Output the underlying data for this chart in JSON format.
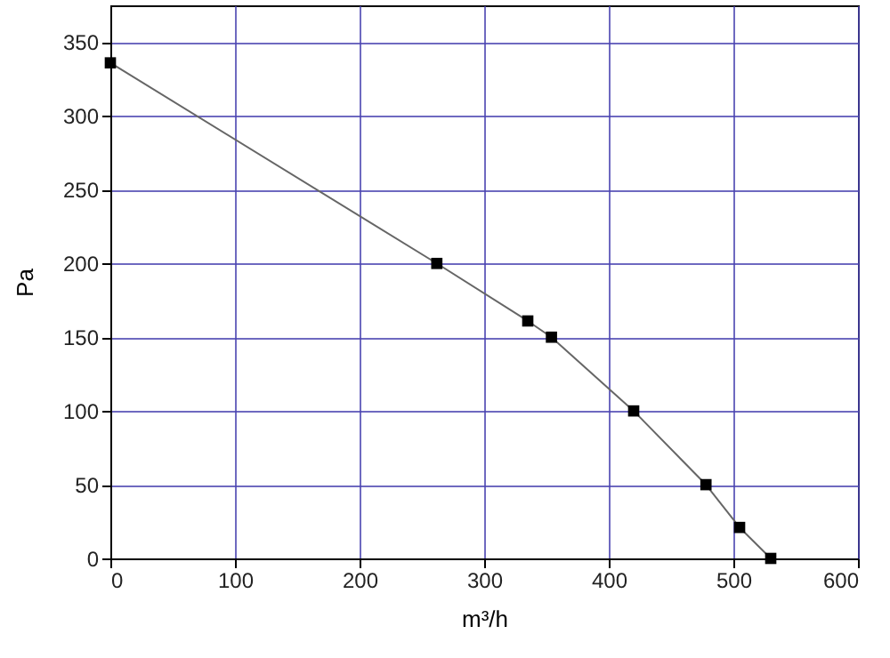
{
  "chart_data": {
    "type": "line",
    "xlabel": "m³/h",
    "ylabel": "Pa",
    "x": [
      0,
      262,
      335,
      354,
      420,
      478,
      505,
      530
    ],
    "series": [
      {
        "color": "#000000",
        "values": [
          336,
          200,
          161,
          150,
          100,
          50,
          21,
          0
        ]
      }
    ],
    "xlim": [
      0,
      600
    ],
    "xticks": [
      0,
      100,
      200,
      300,
      400,
      500,
      600
    ],
    "ylim": [
      0,
      375
    ],
    "yticks": [
      0,
      50,
      100,
      150,
      200,
      250,
      300,
      350
    ],
    "grid": true,
    "marker": "square",
    "line_style": "solid"
  }
}
